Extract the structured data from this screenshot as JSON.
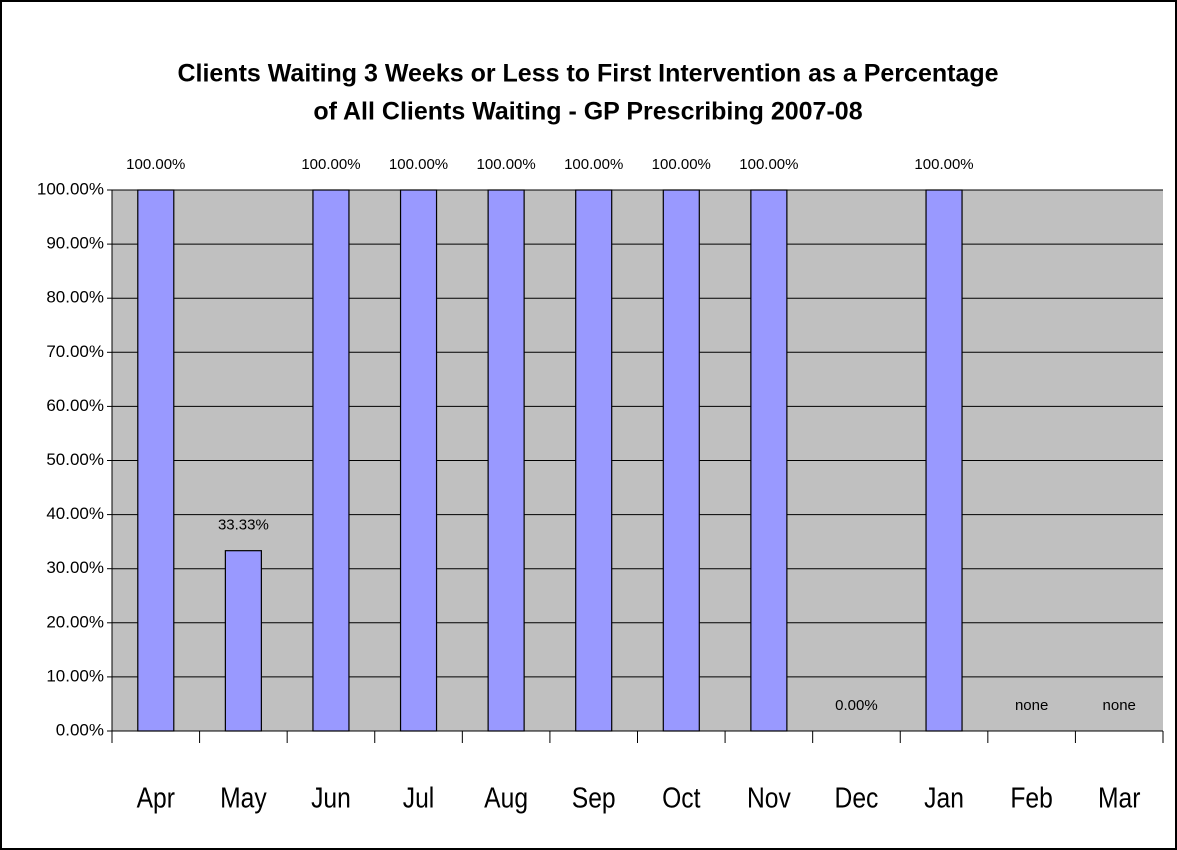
{
  "chart_data": {
    "type": "bar",
    "title": [
      "Clients Waiting 3 Weeks or Less to First Intervention as a Percentage",
      "of All Clients Waiting - GP Prescribing 2007-08"
    ],
    "categories": [
      "Apr",
      "May",
      "Jun",
      "Jul",
      "Aug",
      "Sep",
      "Oct",
      "Nov",
      "Dec",
      "Jan",
      "Feb",
      "Mar"
    ],
    "values": [
      100,
      33.33,
      100,
      100,
      100,
      100,
      100,
      100,
      0,
      100,
      null,
      null
    ],
    "value_labels": [
      "100.00%",
      "33.33%",
      "100.00%",
      "100.00%",
      "100.00%",
      "100.00%",
      "100.00%",
      "100.00%",
      "0.00%",
      "100.00%",
      "none",
      "none"
    ],
    "color": "#9999ff",
    "ylim": [
      0,
      100
    ],
    "yticks": [
      {
        "value": 0,
        "label": "0.00%"
      },
      {
        "value": 10,
        "label": "10.00%"
      },
      {
        "value": 20,
        "label": "20.00%"
      },
      {
        "value": 30,
        "label": "30.00%"
      },
      {
        "value": 40,
        "label": "40.00%"
      },
      {
        "value": 50,
        "label": "50.00%"
      },
      {
        "value": 60,
        "label": "60.00%"
      },
      {
        "value": 70,
        "label": "70.00%"
      },
      {
        "value": 80,
        "label": "80.00%"
      },
      {
        "value": 90,
        "label": "90.00%"
      },
      {
        "value": 100,
        "label": "100.00%"
      }
    ],
    "grid": true
  }
}
